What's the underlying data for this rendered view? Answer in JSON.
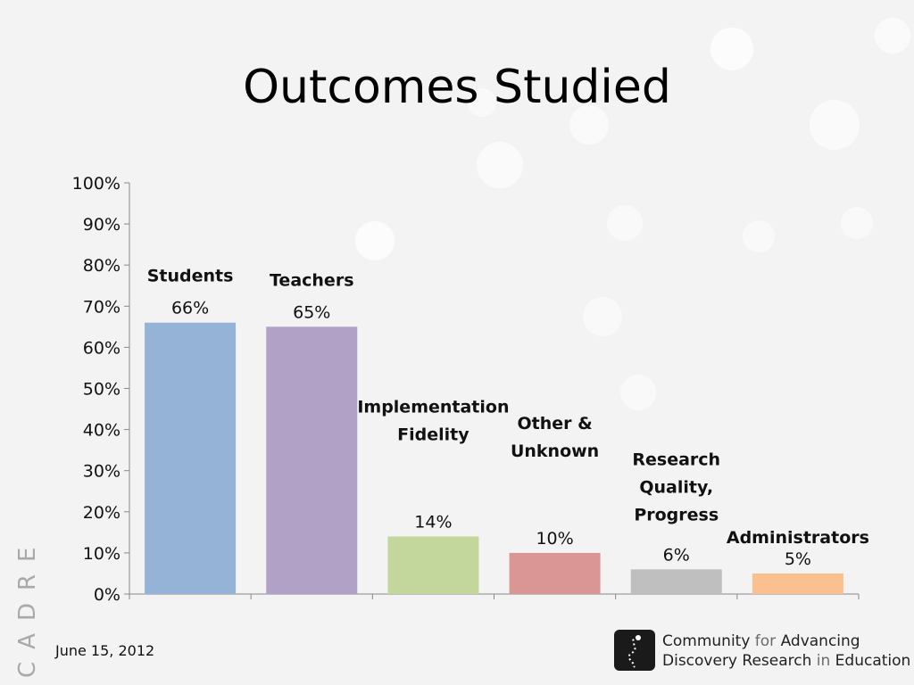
{
  "slide": {
    "title": "Outcomes Studied",
    "date": "June 15, 2012",
    "side_brand": "CADRE"
  },
  "logo": {
    "line1_a": "Community ",
    "line1_b": "for",
    "line1_c": " Advancing",
    "line2_a": "Discovery Research ",
    "line2_b": "in",
    "line2_c": " Education"
  },
  "chart_data": {
    "type": "bar",
    "title": "",
    "xlabel": "",
    "ylabel": "",
    "ylim": [
      0,
      100
    ],
    "yticks": [
      "0%",
      "10%",
      "20%",
      "30%",
      "40%",
      "50%",
      "60%",
      "70%",
      "80%",
      "90%",
      "100%"
    ],
    "grid": false,
    "categories": [
      [
        "Students"
      ],
      [
        "Teachers"
      ],
      [
        "Implementation",
        "Fidelity"
      ],
      [
        "Other &",
        "Unknown"
      ],
      [
        "Research",
        "Quality,",
        "Progress"
      ],
      [
        "Administrators"
      ]
    ],
    "values": [
      66,
      65,
      14,
      10,
      6,
      5
    ],
    "value_labels": [
      "66%",
      "65%",
      "14%",
      "10%",
      "6%",
      "5%"
    ],
    "colors": [
      "#95b3d7",
      "#b2a1c7",
      "#c3d69b",
      "#d99694",
      "#bfbfbf",
      "#fac090"
    ]
  }
}
